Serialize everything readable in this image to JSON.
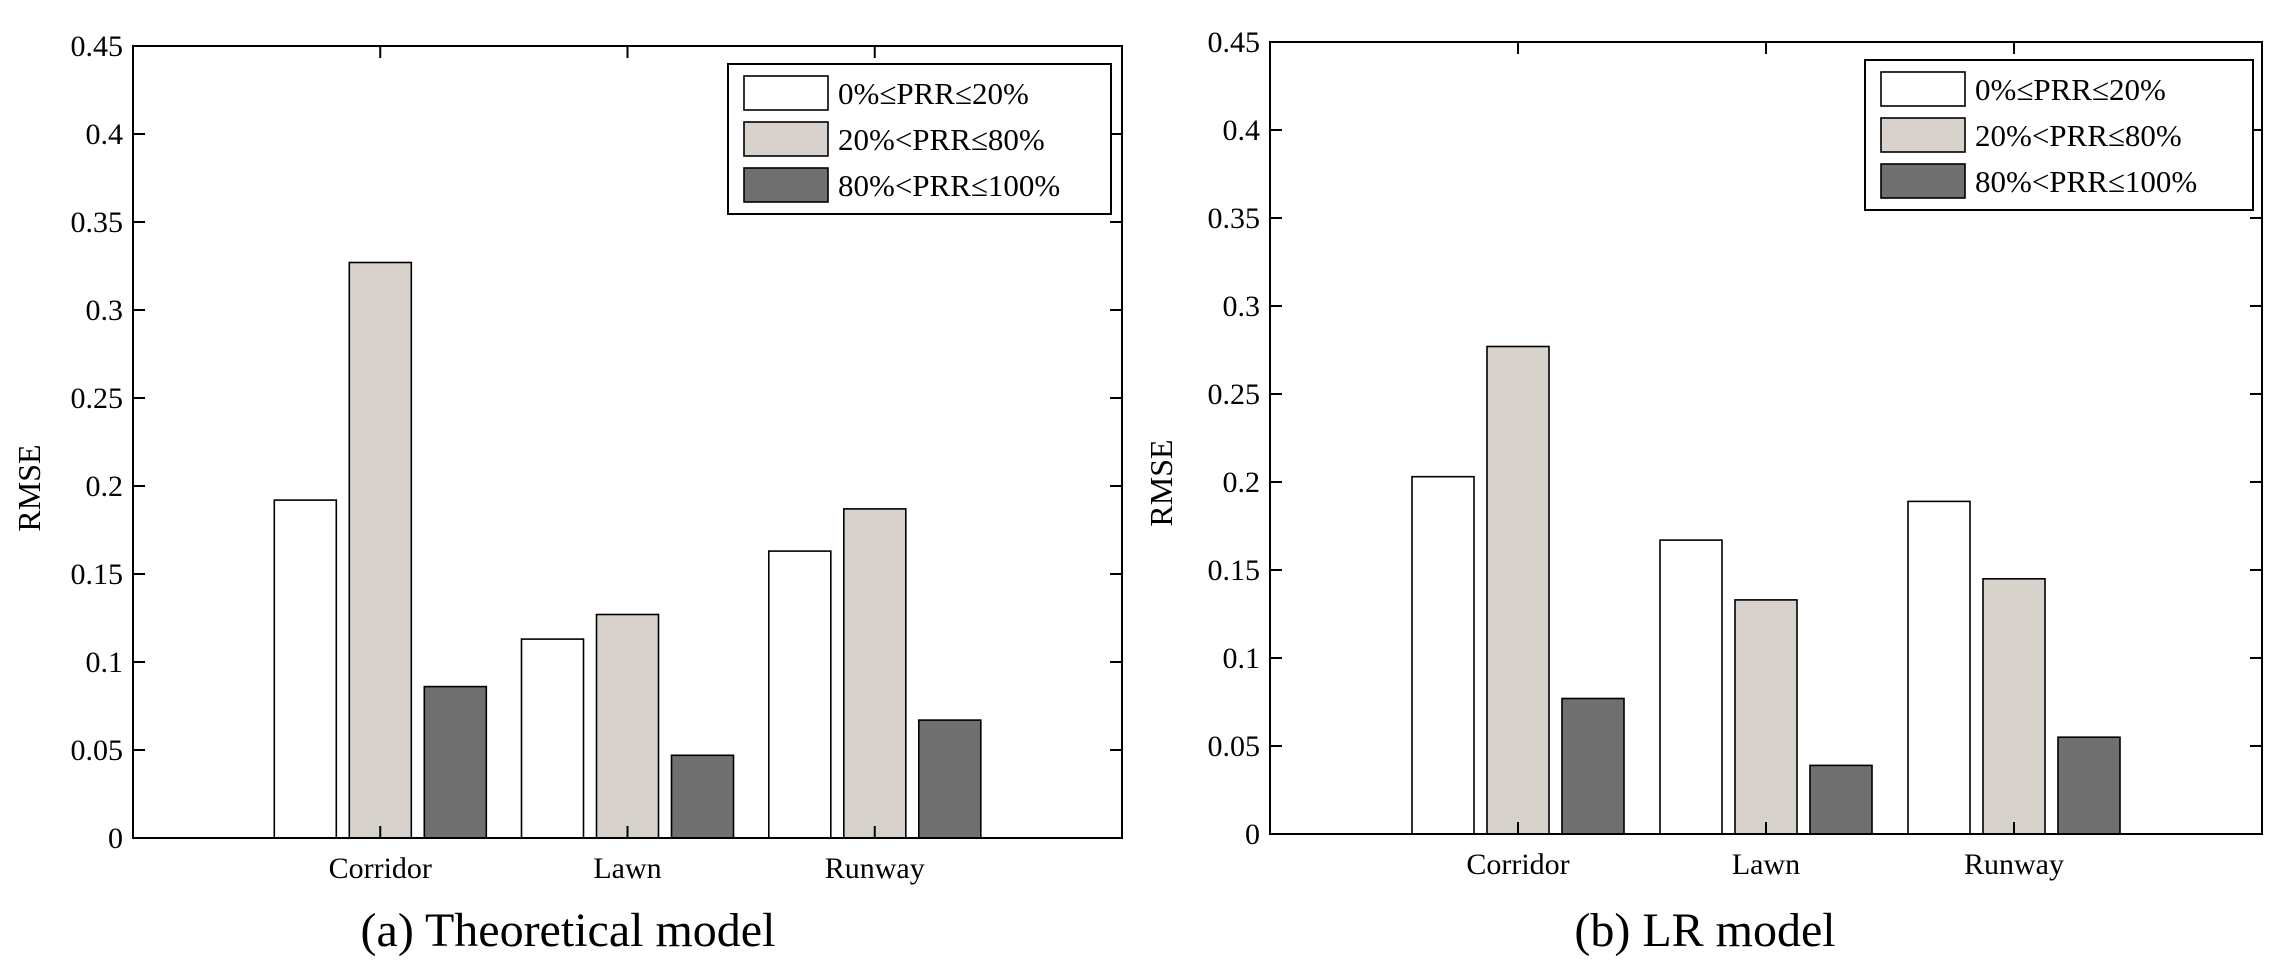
{
  "figure": {
    "background": "#ffffff"
  },
  "chart_data": [
    {
      "type": "bar",
      "caption": "(a) Theoretical model",
      "xlabel": "",
      "ylabel": "RMSE",
      "ylim": [
        0,
        0.45
      ],
      "yticks": [
        "0",
        "0.05",
        "0.1",
        "0.15",
        "0.2",
        "0.25",
        "0.3",
        "0.35",
        "0.4",
        "0.45"
      ],
      "categories": [
        "Corridor",
        "Lawn",
        "Runway"
      ],
      "grid": false,
      "legend_position": "top-right",
      "series": [
        {
          "name": "0%≤PRR≤20%",
          "color": "#ffffff",
          "values": [
            0.192,
            0.113,
            0.163
          ]
        },
        {
          "name": "20%<PRR≤80%",
          "color": "#d8d2cc",
          "values": [
            0.327,
            0.127,
            0.187
          ]
        },
        {
          "name": "80%<PRR≤100%",
          "color": "#707070",
          "values": [
            0.086,
            0.047,
            0.067
          ]
        }
      ]
    },
    {
      "type": "bar",
      "caption": "(b) LR model",
      "xlabel": "",
      "ylabel": "RMSE",
      "ylim": [
        0,
        0.45
      ],
      "yticks": [
        "0",
        "0.05",
        "0.1",
        "0.15",
        "0.2",
        "0.25",
        "0.3",
        "0.35",
        "0.4",
        "0.45"
      ],
      "categories": [
        "Corridor",
        "Lawn",
        "Runway"
      ],
      "grid": false,
      "legend_position": "top-right",
      "series": [
        {
          "name": "0%≤PRR≤20%",
          "color": "#ffffff",
          "values": [
            0.203,
            0.167,
            0.189
          ]
        },
        {
          "name": "20%<PRR≤80%",
          "color": "#d8d2cc",
          "values": [
            0.277,
            0.133,
            0.145
          ]
        },
        {
          "name": "80%<PRR≤100%",
          "color": "#707070",
          "values": [
            0.077,
            0.039,
            0.055
          ]
        }
      ]
    }
  ]
}
